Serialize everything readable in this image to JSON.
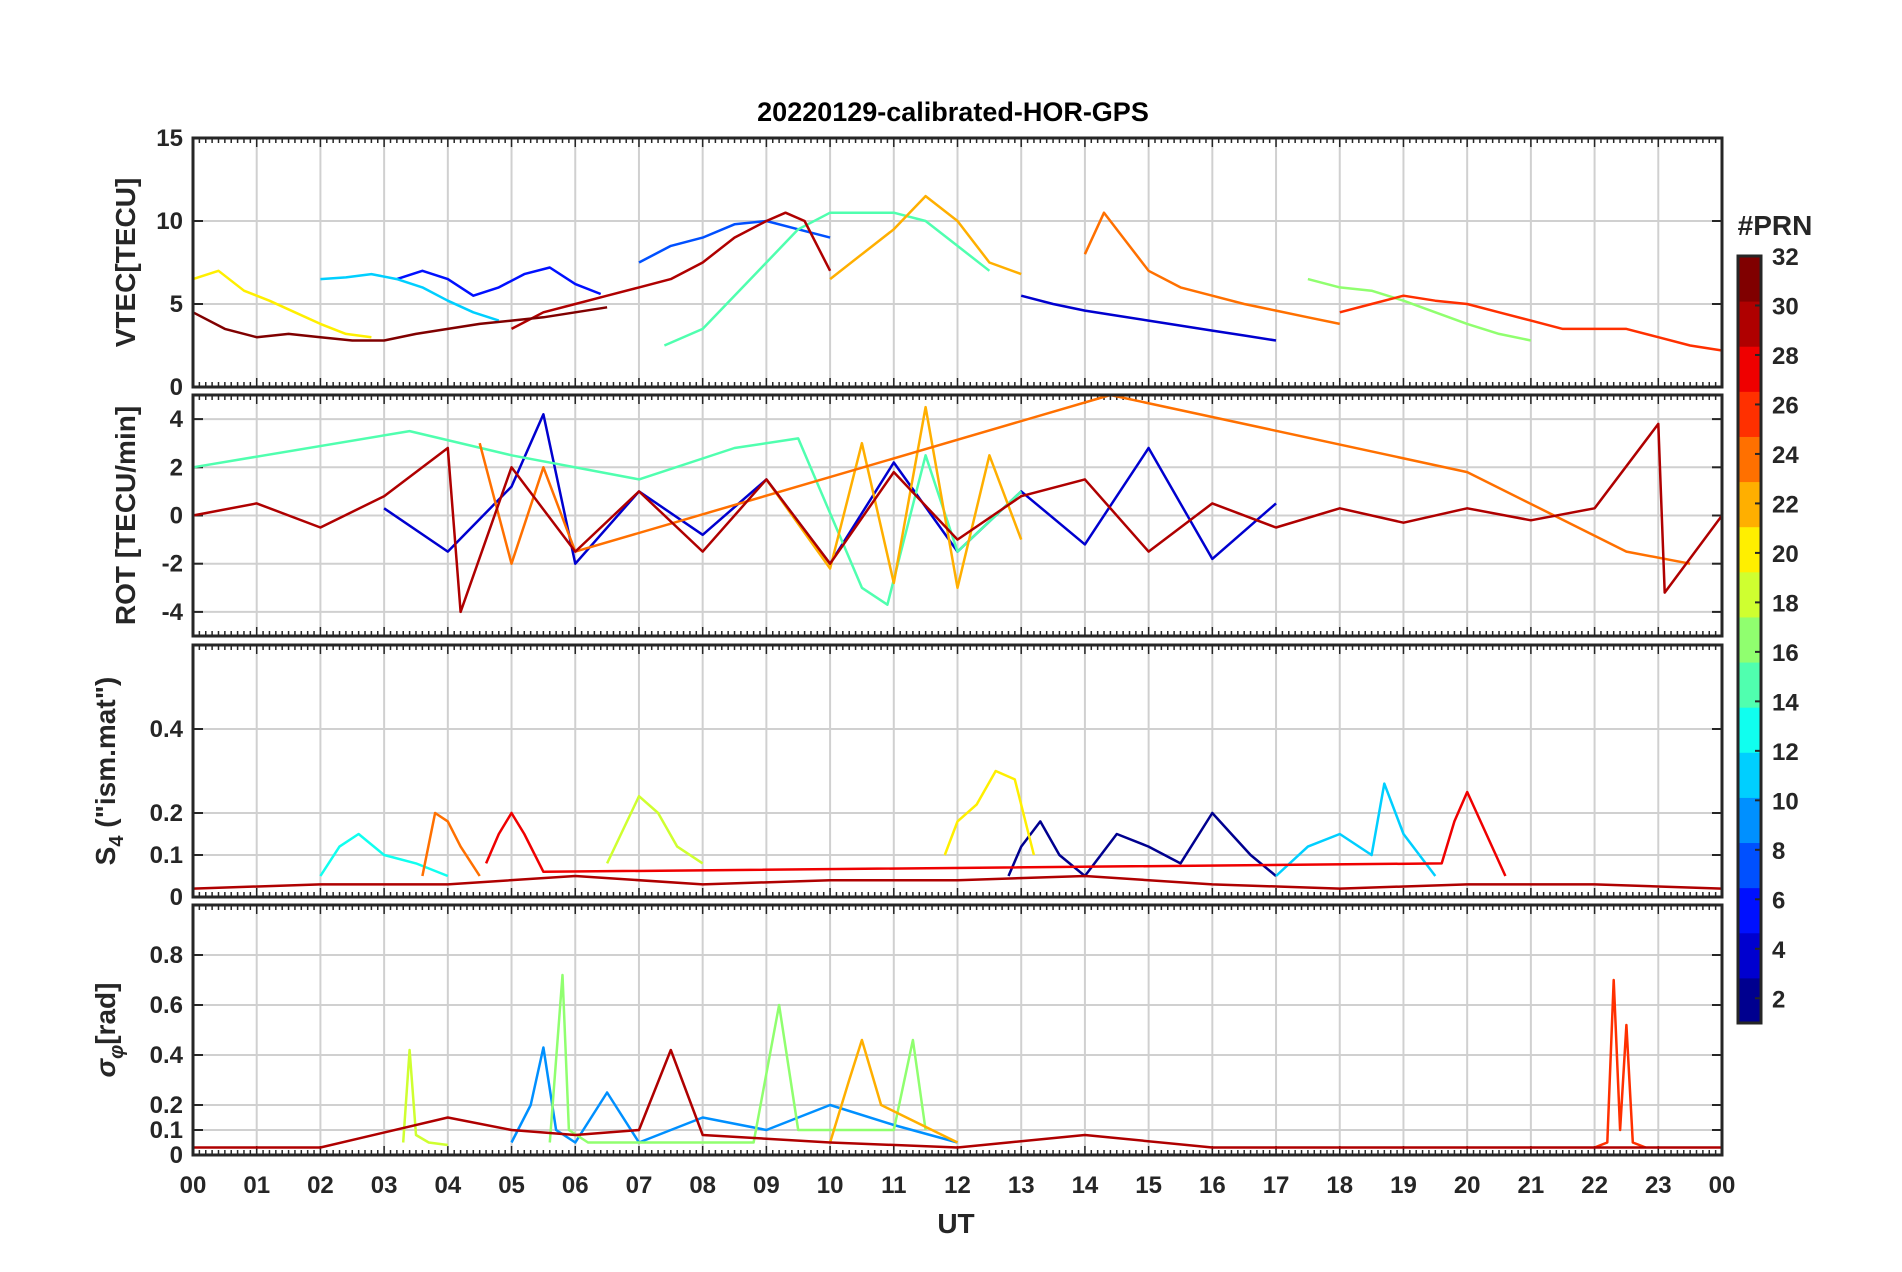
{
  "colors": {
    "axis": "#262626",
    "grid": "#d0d0d0",
    "background": "#ffffff",
    "colormap": [
      "#00008f",
      "#0000cf",
      "#0010ff",
      "#0050ff",
      "#0090ff",
      "#00cfff",
      "#10ffef",
      "#50ffaf",
      "#90ff6f",
      "#cfff30",
      "#ffef00",
      "#ffaf00",
      "#ff7000",
      "#ff3000",
      "#ef0000",
      "#af0000",
      "#800000"
    ]
  },
  "chart_data": {
    "type": "line",
    "title": "20220129-calibrated-HOR-GPS",
    "xlabel": "UT",
    "xlim": [
      0,
      24
    ],
    "x_ticks": [
      0,
      1,
      2,
      3,
      4,
      5,
      6,
      7,
      8,
      9,
      10,
      11,
      12,
      13,
      14,
      15,
      16,
      17,
      18,
      19,
      20,
      21,
      22,
      23,
      24
    ],
    "x_tick_labels": [
      "00",
      "01",
      "02",
      "03",
      "04",
      "05",
      "06",
      "07",
      "08",
      "09",
      "10",
      "11",
      "12",
      "13",
      "14",
      "15",
      "16",
      "17",
      "18",
      "19",
      "20",
      "21",
      "22",
      "23",
      "00"
    ],
    "colorbar": {
      "label": "#PRN",
      "range": [
        1,
        32
      ],
      "ticks": [
        2,
        4,
        6,
        8,
        10,
        12,
        14,
        16,
        18,
        20,
        22,
        24,
        26,
        28,
        30,
        32
      ],
      "tick_labels": [
        "2",
        "4",
        "6",
        "8",
        "10",
        "12",
        "14",
        "16",
        "18",
        "20",
        "22",
        "24",
        "26",
        "28",
        "30",
        "32"
      ]
    },
    "panels": [
      {
        "name": "vtec",
        "ylabel": "VTEC[TECU]",
        "ylim": [
          0,
          15
        ],
        "yticks": [
          0,
          5,
          10,
          15
        ],
        "ytick_labels": [
          "0",
          "5",
          "10",
          "15"
        ],
        "series": [
          {
            "name": "PRN 02",
            "prn": 2,
            "x": [
              13.0,
              13.5,
              14.0,
              14.5,
              15.0,
              15.5,
              16.0,
              16.5,
              17.0
            ],
            "y": [
              5.5,
              5.0,
              4.6,
              4.3,
              4.0,
              3.7,
              3.4,
              3.1,
              2.8
            ]
          },
          {
            "name": "PRN 05",
            "prn": 5,
            "x": [
              3.2,
              3.6,
              4.0,
              4.4,
              4.8,
              5.2,
              5.6,
              6.0,
              6.4
            ],
            "y": [
              6.5,
              7.0,
              6.5,
              5.5,
              6.0,
              6.8,
              7.2,
              6.2,
              5.6
            ]
          },
          {
            "name": "PRN 07",
            "prn": 7,
            "x": [
              7.0,
              7.5,
              8.0,
              8.5,
              9.0,
              9.5,
              10.0
            ],
            "y": [
              7.5,
              8.5,
              9.0,
              9.8,
              10.0,
              9.5,
              9.0
            ]
          },
          {
            "name": "PRN 11",
            "prn": 11,
            "x": [
              2.0,
              2.4,
              2.8,
              3.2,
              3.6,
              4.0,
              4.4,
              4.8
            ],
            "y": [
              6.5,
              6.6,
              6.8,
              6.5,
              6.0,
              5.2,
              4.5,
              4.0
            ]
          },
          {
            "name": "PRN 14",
            "prn": 14,
            "x": [
              7.4,
              8.0,
              8.5,
              9.0,
              9.5,
              10.0,
              10.5,
              11.0,
              11.5,
              12.0,
              12.5
            ],
            "y": [
              2.5,
              3.5,
              5.5,
              7.5,
              9.5,
              10.5,
              10.5,
              10.5,
              10.0,
              8.5,
              7.0
            ]
          },
          {
            "name": "PRN 17",
            "prn": 17,
            "x": [
              17.5,
              18.0,
              18.5,
              19.0,
              19.5,
              20.0,
              20.5,
              21.0
            ],
            "y": [
              6.5,
              6.0,
              5.8,
              5.2,
              4.5,
              3.8,
              3.2,
              2.8
            ]
          },
          {
            "name": "PRN 20",
            "prn": 20,
            "x": [
              0.0,
              0.4,
              0.8,
              1.2,
              1.6,
              2.0,
              2.4,
              2.8
            ],
            "y": [
              6.5,
              7.0,
              5.8,
              5.2,
              4.5,
              3.8,
              3.2,
              3.0
            ]
          },
          {
            "name": "PRN 22",
            "prn": 22,
            "x": [
              10.0,
              10.5,
              11.0,
              11.5,
              12.0,
              12.5,
              13.0
            ],
            "y": [
              6.5,
              8.0,
              9.5,
              11.5,
              10.0,
              7.5,
              6.8
            ]
          },
          {
            "name": "PRN 24",
            "prn": 24,
            "x": [
              14.0,
              14.3,
              14.6,
              15.0,
              15.5,
              16.0,
              16.5,
              17.0,
              17.5,
              18.0
            ],
            "y": [
              8.0,
              10.5,
              9.0,
              7.0,
              6.0,
              5.5,
              5.0,
              4.6,
              4.2,
              3.8
            ]
          },
          {
            "name": "PRN 27",
            "prn": 27,
            "x": [
              18.0,
              18.5,
              19.0,
              19.5,
              20.0,
              20.5,
              21.0,
              21.5,
              22.0,
              22.5,
              23.0,
              23.5,
              24.0
            ],
            "y": [
              4.5,
              5.0,
              5.5,
              5.2,
              5.0,
              4.5,
              4.0,
              3.5,
              3.5,
              3.5,
              3.0,
              2.5,
              2.2
            ]
          },
          {
            "name": "PRN 30",
            "prn": 30,
            "x": [
              5.0,
              5.5,
              6.0,
              6.5,
              7.0,
              7.5,
              8.0,
              8.5,
              9.0,
              9.3,
              9.6,
              10.0
            ],
            "y": [
              3.5,
              4.5,
              5.0,
              5.5,
              6.0,
              6.5,
              7.5,
              9.0,
              10.0,
              10.5,
              10.0,
              7.0
            ]
          },
          {
            "name": "PRN 32",
            "prn": 32,
            "x": [
              0.0,
              0.5,
              1.0,
              1.5,
              2.0,
              2.5,
              3.0,
              3.5,
              4.0,
              4.5,
              5.0,
              5.5,
              6.0,
              6.5
            ],
            "y": [
              4.5,
              3.5,
              3.0,
              3.2,
              3.0,
              2.8,
              2.8,
              3.2,
              3.5,
              3.8,
              4.0,
              4.2,
              4.5,
              4.8
            ]
          }
        ]
      },
      {
        "name": "rot",
        "ylabel": "ROT [TECU/min]",
        "ylim": [
          -5,
          5
        ],
        "yticks": [
          -4,
          -2,
          0,
          2,
          4
        ],
        "ytick_labels": [
          "-4",
          "-2",
          "0",
          "2",
          "4"
        ],
        "series": [
          {
            "name": "PRN 03",
            "prn": 3,
            "x": [
              3.0,
              4.0,
              5.0,
              5.5,
              6.0,
              7.0,
              8.0,
              9.0,
              10.0,
              11.0,
              12.0,
              13.0,
              14.0,
              15.0,
              16.0,
              17.0
            ],
            "y": [
              0.3,
              -1.5,
              1.2,
              4.2,
              -2.0,
              1.0,
              -0.8,
              1.5,
              -2.0,
              2.2,
              -1.5,
              1.0,
              -1.2,
              2.8,
              -1.8,
              0.5
            ]
          },
          {
            "name": "PRN 15",
            "prn": 15,
            "x": [
              0.0,
              3.4,
              5.0,
              7.0,
              8.5,
              9.5,
              10.5,
              10.9,
              11.5,
              12.0,
              13.0
            ],
            "y": [
              2.0,
              3.5,
              2.5,
              1.5,
              2.8,
              3.2,
              -3.0,
              -3.7,
              2.5,
              -1.5,
              1.0
            ]
          },
          {
            "name": "PRN 22",
            "prn": 22,
            "x": [
              9.0,
              10.0,
              10.5,
              11.0,
              11.5,
              12.0,
              12.5,
              13.0
            ],
            "y": [
              1.5,
              -2.2,
              3.0,
              -2.8,
              4.5,
              -3.0,
              2.5,
              -1.0
            ]
          },
          {
            "name": "PRN 25",
            "prn": 25,
            "x": [
              4.5,
              5.0,
              5.5,
              6.0,
              14.4,
              20.0,
              22.5,
              23.5
            ],
            "y": [
              3.0,
              -2.0,
              2.0,
              -1.5,
              5.0,
              1.8,
              -1.5,
              -2.0
            ]
          },
          {
            "name": "PRN 31",
            "prn": 31,
            "x": [
              0.0,
              1.0,
              2.0,
              3.0,
              4.0,
              4.2,
              5.0,
              6.0,
              7.0,
              8.0,
              9.0,
              10.0,
              11.0,
              12.0,
              13.0,
              14.0,
              15.0,
              16.0,
              17.0,
              18.0,
              19.0,
              20.0,
              21.0,
              22.0,
              23.0,
              23.1,
              24.0
            ],
            "y": [
              0.0,
              0.5,
              -0.5,
              0.8,
              2.8,
              -4.0,
              2.0,
              -1.5,
              1.0,
              -1.5,
              1.5,
              -2.0,
              1.8,
              -1.0,
              0.8,
              1.5,
              -1.5,
              0.5,
              -0.5,
              0.3,
              -0.3,
              0.3,
              -0.2,
              0.3,
              3.8,
              -3.2,
              0.0
            ]
          }
        ]
      },
      {
        "name": "s4",
        "ylabel": "S4 (\"ism.mat\")",
        "ylabel_main": "S",
        "ylabel_sub": "4",
        "ylabel_rest": " (\"ism.mat\")",
        "ylim": [
          0,
          0.6
        ],
        "yticks": [
          0,
          0.1,
          0.2,
          0.4
        ],
        "ytick_labels": [
          "0",
          "0.1",
          "0.2",
          "0.4"
        ],
        "series": [
          {
            "name": "PRN 01",
            "prn": 1,
            "x": [
              12.8,
              13.0,
              13.3,
              13.6,
              14.0,
              14.5,
              15.0,
              15.5,
              16.0,
              16.3,
              16.6,
              17.0
            ],
            "y": [
              0.05,
              0.12,
              0.18,
              0.1,
              0.05,
              0.15,
              0.12,
              0.08,
              0.2,
              0.15,
              0.1,
              0.05
            ]
          },
          {
            "name": "PRN 10",
            "prn": 10,
            "x": [
              17.0,
              17.5,
              18.0,
              18.5,
              18.7,
              19.0,
              19.5
            ],
            "y": [
              0.05,
              0.12,
              0.15,
              0.1,
              0.27,
              0.15,
              0.05
            ]
          },
          {
            "name": "PRN 13",
            "prn": 13,
            "x": [
              2.0,
              2.3,
              2.6,
              3.0,
              3.5,
              4.0
            ],
            "y": [
              0.05,
              0.12,
              0.15,
              0.1,
              0.08,
              0.05
            ]
          },
          {
            "name": "PRN 18",
            "prn": 18,
            "x": [
              6.5,
              7.0,
              7.3,
              7.6,
              8.0
            ],
            "y": [
              0.08,
              0.24,
              0.2,
              0.12,
              0.08
            ]
          },
          {
            "name": "PRN 21",
            "prn": 21,
            "x": [
              11.8,
              12.0,
              12.3,
              12.6,
              12.9,
              13.2
            ],
            "y": [
              0.1,
              0.18,
              0.22,
              0.3,
              0.28,
              0.1
            ]
          },
          {
            "name": "PRN 24",
            "prn": 24,
            "x": [
              3.6,
              3.8,
              4.0,
              4.2,
              4.5
            ],
            "y": [
              0.05,
              0.2,
              0.18,
              0.12,
              0.05
            ]
          },
          {
            "name": "PRN 28",
            "prn": 28,
            "x": [
              4.6,
              4.8,
              5.0,
              5.2,
              5.5,
              19.6,
              19.8,
              20.0,
              20.3,
              20.6
            ],
            "y": [
              0.08,
              0.15,
              0.2,
              0.15,
              0.06,
              0.08,
              0.18,
              0.25,
              0.15,
              0.05
            ]
          },
          {
            "name": "PRN 31",
            "prn": 31,
            "x": [
              0.0,
              2.0,
              4.0,
              6.0,
              8.0,
              10.0,
              12.0,
              14.0,
              16.0,
              18.0,
              20.0,
              22.0,
              24.0
            ],
            "y": [
              0.02,
              0.03,
              0.03,
              0.05,
              0.03,
              0.04,
              0.04,
              0.05,
              0.03,
              0.02,
              0.03,
              0.03,
              0.02
            ]
          }
        ]
      },
      {
        "name": "sigma-phi",
        "ylabel": "σφ[rad]",
        "ylabel_main": "σ",
        "ylabel_sub": "φ",
        "ylabel_rest": "[rad]",
        "ylim": [
          0,
          1.0
        ],
        "yticks": [
          0,
          0.1,
          0.2,
          0.4,
          0.6,
          0.8
        ],
        "ytick_labels": [
          "0",
          "0.1",
          "0.2",
          "0.4",
          "0.6",
          "0.8"
        ],
        "series": [
          {
            "name": "PRN 09",
            "prn": 9,
            "x": [
              5.0,
              5.3,
              5.5,
              5.7,
              6.0,
              6.5,
              7.0,
              8.0,
              9.0,
              10.0,
              11.0,
              12.0
            ],
            "y": [
              0.05,
              0.2,
              0.43,
              0.1,
              0.05,
              0.25,
              0.05,
              0.15,
              0.1,
              0.2,
              0.12,
              0.05
            ]
          },
          {
            "name": "PRN 16",
            "prn": 16,
            "x": [
              5.6,
              5.8,
              5.9,
              6.2,
              8.8,
              9.2,
              9.5,
              11.0,
              11.3,
              11.5
            ],
            "y": [
              0.05,
              0.72,
              0.1,
              0.05,
              0.05,
              0.6,
              0.1,
              0.1,
              0.46,
              0.1
            ]
          },
          {
            "name": "PRN 19",
            "prn": 19,
            "x": [
              3.3,
              3.4,
              3.5,
              3.7,
              4.0
            ],
            "y": [
              0.05,
              0.42,
              0.08,
              0.05,
              0.04
            ]
          },
          {
            "name": "PRN 23",
            "prn": 23,
            "x": [
              10.0,
              10.3,
              10.5,
              10.8,
              11.2,
              11.6,
              12.0
            ],
            "y": [
              0.05,
              0.3,
              0.46,
              0.2,
              0.15,
              0.1,
              0.05
            ]
          },
          {
            "name": "PRN 27",
            "prn": 27,
            "x": [
              22.0,
              22.2,
              22.3,
              22.4,
              22.5,
              22.6,
              22.8
            ],
            "y": [
              0.03,
              0.05,
              0.7,
              0.1,
              0.52,
              0.05,
              0.03
            ]
          },
          {
            "name": "PRN 31",
            "prn": 31,
            "x": [
              0.0,
              2.0,
              4.0,
              5.0,
              6.0,
              7.0,
              7.5,
              8.0,
              10.0,
              12.0,
              14.0,
              16.0,
              18.0,
              20.0,
              22.0,
              24.0
            ],
            "y": [
              0.03,
              0.03,
              0.15,
              0.1,
              0.08,
              0.1,
              0.42,
              0.08,
              0.05,
              0.03,
              0.08,
              0.03,
              0.03,
              0.03,
              0.03,
              0.03
            ]
          }
        ]
      }
    ]
  }
}
